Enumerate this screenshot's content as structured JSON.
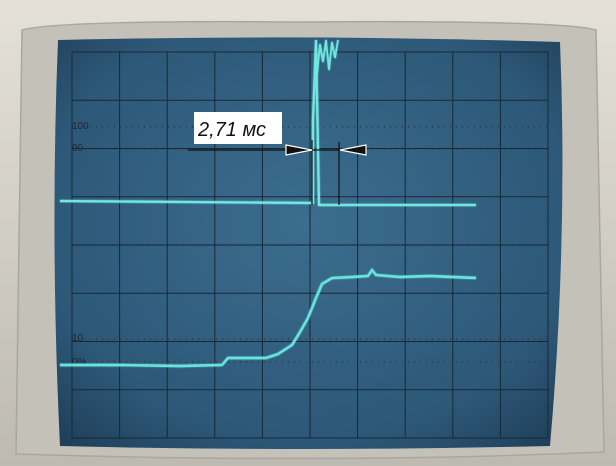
{
  "graticule_labels": {
    "top_100": "100",
    "top_90": "90",
    "bottom_10": "10",
    "bottom_0": "0%"
  },
  "measurement": {
    "label": "2,71 мс"
  },
  "colors": {
    "bezel": "#d6d3cb",
    "bezel_shadow": "#b9b6ae",
    "screen": "#305d7c",
    "screen_dark": "#203f58",
    "grid": "#182836",
    "trace": "#66e5dd",
    "label_bg": "#ffffff",
    "arrow": "#111111"
  }
}
